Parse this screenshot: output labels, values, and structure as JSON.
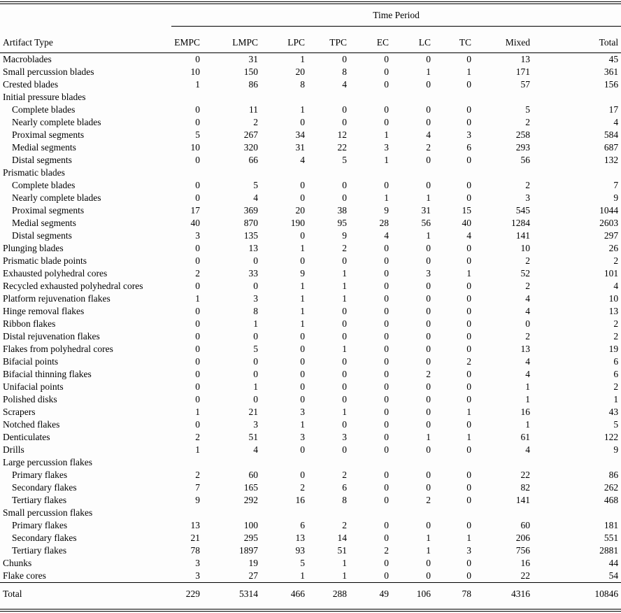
{
  "table": {
    "spanner": "Time Period",
    "row_header": "Artifact Type",
    "columns": [
      "EMPC",
      "LMPC",
      "LPC",
      "TPC",
      "EC",
      "LC",
      "TC",
      "Mixed",
      "Total"
    ],
    "rows": [
      {
        "label": "Macroblades",
        "indent": 0,
        "values": [
          0,
          31,
          1,
          0,
          0,
          0,
          0,
          13,
          45
        ]
      },
      {
        "label": "Small percussion blades",
        "indent": 0,
        "values": [
          10,
          150,
          20,
          8,
          0,
          1,
          1,
          171,
          361
        ]
      },
      {
        "label": "Crested blades",
        "indent": 0,
        "values": [
          1,
          86,
          8,
          4,
          0,
          0,
          0,
          57,
          156
        ]
      },
      {
        "label": "Initial pressure blades",
        "indent": 0,
        "values": null
      },
      {
        "label": "Complete blades",
        "indent": 1,
        "values": [
          0,
          11,
          1,
          0,
          0,
          0,
          0,
          5,
          17
        ]
      },
      {
        "label": "Nearly complete blades",
        "indent": 1,
        "values": [
          0,
          2,
          0,
          0,
          0,
          0,
          0,
          2,
          4
        ]
      },
      {
        "label": "Proximal segments",
        "indent": 1,
        "values": [
          5,
          267,
          34,
          12,
          1,
          4,
          3,
          258,
          584
        ]
      },
      {
        "label": "Medial segments",
        "indent": 1,
        "values": [
          10,
          320,
          31,
          22,
          3,
          2,
          6,
          293,
          687
        ]
      },
      {
        "label": "Distal segments",
        "indent": 1,
        "values": [
          0,
          66,
          4,
          5,
          1,
          0,
          0,
          56,
          132
        ]
      },
      {
        "label": "Prismatic blades",
        "indent": 0,
        "values": null
      },
      {
        "label": "Complete blades",
        "indent": 1,
        "values": [
          0,
          5,
          0,
          0,
          0,
          0,
          0,
          2,
          7
        ]
      },
      {
        "label": "Nearly complete blades",
        "indent": 1,
        "values": [
          0,
          4,
          0,
          0,
          1,
          1,
          0,
          3,
          9
        ]
      },
      {
        "label": "Proximal segments",
        "indent": 1,
        "values": [
          17,
          369,
          20,
          38,
          9,
          31,
          15,
          545,
          1044
        ]
      },
      {
        "label": "Medial segments",
        "indent": 1,
        "values": [
          40,
          870,
          190,
          95,
          28,
          56,
          40,
          1284,
          2603
        ]
      },
      {
        "label": "Distal segments",
        "indent": 1,
        "values": [
          3,
          135,
          0,
          9,
          4,
          1,
          4,
          141,
          297
        ]
      },
      {
        "label": "Plunging blades",
        "indent": 0,
        "values": [
          0,
          13,
          1,
          2,
          0,
          0,
          0,
          10,
          26
        ]
      },
      {
        "label": "Prismatic blade points",
        "indent": 0,
        "values": [
          0,
          0,
          0,
          0,
          0,
          0,
          0,
          2,
          2
        ]
      },
      {
        "label": "Exhausted polyhedral cores",
        "indent": 0,
        "values": [
          2,
          33,
          9,
          1,
          0,
          3,
          1,
          52,
          101
        ]
      },
      {
        "label": "Recycled exhausted polyhedral cores",
        "indent": 0,
        "values": [
          0,
          0,
          1,
          1,
          0,
          0,
          0,
          2,
          4
        ]
      },
      {
        "label": "Platform rejuvenation flakes",
        "indent": 0,
        "values": [
          1,
          3,
          1,
          1,
          0,
          0,
          0,
          4,
          10
        ]
      },
      {
        "label": "Hinge removal flakes",
        "indent": 0,
        "values": [
          0,
          8,
          1,
          0,
          0,
          0,
          0,
          4,
          13
        ]
      },
      {
        "label": "Ribbon flakes",
        "indent": 0,
        "values": [
          0,
          1,
          1,
          0,
          0,
          0,
          0,
          0,
          2
        ]
      },
      {
        "label": "Distal rejuvenation flakes",
        "indent": 0,
        "values": [
          0,
          0,
          0,
          0,
          0,
          0,
          0,
          2,
          2
        ]
      },
      {
        "label": "Flakes from polyhedral cores",
        "indent": 0,
        "values": [
          0,
          5,
          0,
          1,
          0,
          0,
          0,
          13,
          19
        ]
      },
      {
        "label": "Bifacial points",
        "indent": 0,
        "values": [
          0,
          0,
          0,
          0,
          0,
          0,
          2,
          4,
          6
        ]
      },
      {
        "label": "Bifacial thinning flakes",
        "indent": 0,
        "values": [
          0,
          0,
          0,
          0,
          0,
          2,
          0,
          4,
          6
        ]
      },
      {
        "label": "Unifacial points",
        "indent": 0,
        "values": [
          0,
          1,
          0,
          0,
          0,
          0,
          0,
          1,
          2
        ]
      },
      {
        "label": "Polished disks",
        "indent": 0,
        "values": [
          0,
          0,
          0,
          0,
          0,
          0,
          0,
          1,
          1
        ]
      },
      {
        "label": "Scrapers",
        "indent": 0,
        "values": [
          1,
          21,
          3,
          1,
          0,
          0,
          1,
          16,
          43
        ]
      },
      {
        "label": "Notched flakes",
        "indent": 0,
        "values": [
          0,
          3,
          1,
          0,
          0,
          0,
          0,
          1,
          5
        ]
      },
      {
        "label": "Denticulates",
        "indent": 0,
        "values": [
          2,
          51,
          3,
          3,
          0,
          1,
          1,
          61,
          122
        ]
      },
      {
        "label": "Drills",
        "indent": 0,
        "values": [
          1,
          4,
          0,
          0,
          0,
          0,
          0,
          4,
          9
        ]
      },
      {
        "label": "Large percussion flakes",
        "indent": 0,
        "values": null
      },
      {
        "label": "Primary flakes",
        "indent": 1,
        "values": [
          2,
          60,
          0,
          2,
          0,
          0,
          0,
          22,
          86
        ]
      },
      {
        "label": "Secondary flakes",
        "indent": 1,
        "values": [
          7,
          165,
          2,
          6,
          0,
          0,
          0,
          82,
          262
        ]
      },
      {
        "label": "Tertiary flakes",
        "indent": 1,
        "values": [
          9,
          292,
          16,
          8,
          0,
          2,
          0,
          141,
          468
        ]
      },
      {
        "label": "Small percussion flakes",
        "indent": 0,
        "values": null
      },
      {
        "label": "Primary flakes",
        "indent": 1,
        "values": [
          13,
          100,
          6,
          2,
          0,
          0,
          0,
          60,
          181
        ]
      },
      {
        "label": "Secondary flakes",
        "indent": 1,
        "values": [
          21,
          295,
          13,
          14,
          0,
          1,
          1,
          206,
          551
        ]
      },
      {
        "label": "Tertiary flakes",
        "indent": 1,
        "values": [
          78,
          1897,
          93,
          51,
          2,
          1,
          3,
          756,
          2881
        ]
      },
      {
        "label": "Chunks",
        "indent": 0,
        "values": [
          3,
          19,
          5,
          1,
          0,
          0,
          0,
          16,
          44
        ]
      },
      {
        "label": "Flake cores",
        "indent": 0,
        "values": [
          3,
          27,
          1,
          1,
          0,
          0,
          0,
          22,
          54
        ]
      }
    ],
    "total_row": {
      "label": "Total",
      "values": [
        229,
        5314,
        466,
        288,
        49,
        106,
        78,
        4316,
        10846
      ]
    }
  }
}
